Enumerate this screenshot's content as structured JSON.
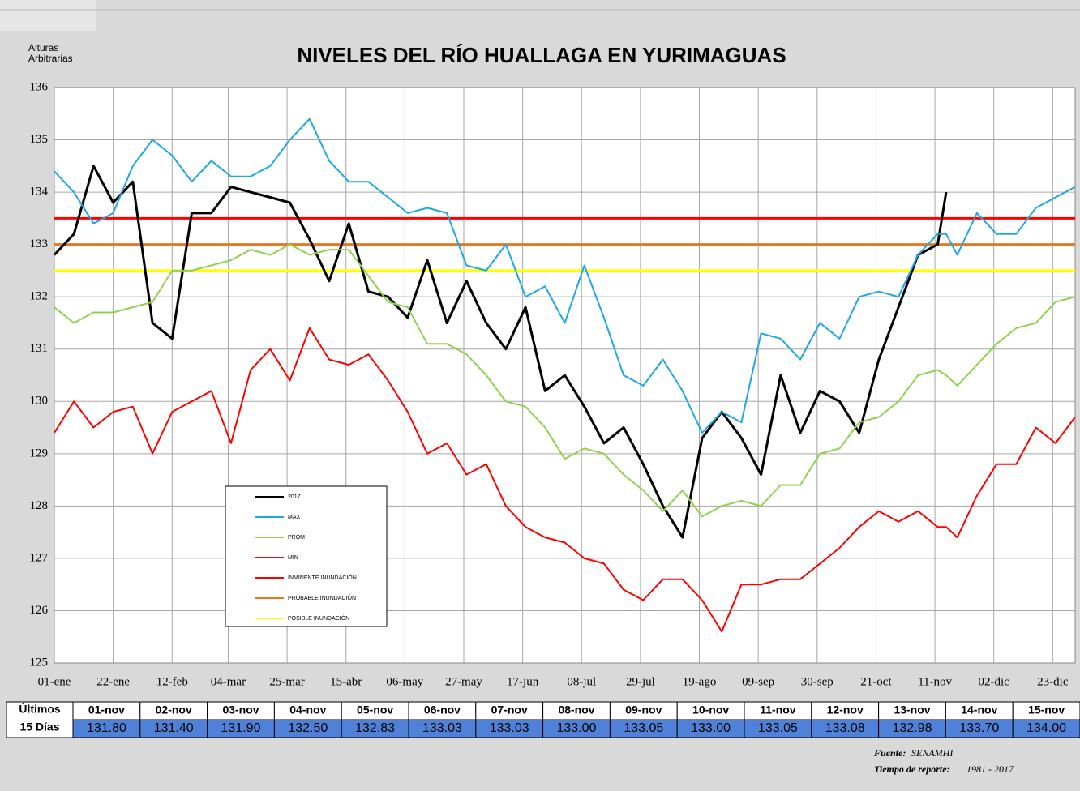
{
  "chart_data": {
    "type": "line",
    "title": "NIVELES DEL RÍO HUALLAGA EN YURIMAGUAS",
    "y_label": [
      "Alturas",
      "Arbitrarias"
    ],
    "xlim": [
      0,
      364
    ],
    "xticks": [
      {
        "value": 0,
        "label": "01-ene"
      },
      {
        "value": 21,
        "label": "22-ene"
      },
      {
        "value": 42,
        "label": "12-feb"
      },
      {
        "value": 62,
        "label": "04-mar"
      },
      {
        "value": 83,
        "label": "25-mar"
      },
      {
        "value": 104,
        "label": "15-abr"
      },
      {
        "value": 125,
        "label": "06-may"
      },
      {
        "value": 146,
        "label": "27-may"
      },
      {
        "value": 167,
        "label": "17-jun"
      },
      {
        "value": 188,
        "label": "08-jul"
      },
      {
        "value": 209,
        "label": "29-jul"
      },
      {
        "value": 230,
        "label": "19-ago"
      },
      {
        "value": 251,
        "label": "09-sep"
      },
      {
        "value": 272,
        "label": "30-sep"
      },
      {
        "value": 293,
        "label": "21-oct"
      },
      {
        "value": 314,
        "label": "11-nov"
      },
      {
        "value": 335,
        "label": "02-dic"
      },
      {
        "value": 356,
        "label": "23-dic"
      }
    ],
    "ylim": [
      125,
      136
    ],
    "yticks": [
      125,
      126,
      127,
      128,
      129,
      130,
      131,
      132,
      133,
      134,
      135,
      136
    ],
    "grid": true,
    "x": [
      0,
      7,
      14,
      21,
      28,
      35,
      42,
      49,
      56,
      63,
      70,
      77,
      84,
      91,
      98,
      105,
      112,
      119,
      126,
      133,
      140,
      147,
      154,
      161,
      168,
      175,
      182,
      189,
      196,
      203,
      210,
      217,
      224,
      231,
      238,
      245,
      252,
      259,
      266,
      273,
      280,
      287,
      294,
      301,
      308,
      315,
      318,
      322,
      329,
      336,
      343,
      350,
      357,
      364
    ],
    "series": [
      {
        "name": "2017",
        "color": "#000000",
        "width": 3,
        "values": [
          132.8,
          133.2,
          134.5,
          133.8,
          134.2,
          131.5,
          131.2,
          133.6,
          133.6,
          134.1,
          134.0,
          133.9,
          133.8,
          133.1,
          132.3,
          133.4,
          132.1,
          132.0,
          131.6,
          132.7,
          131.5,
          132.3,
          131.5,
          131.0,
          131.8,
          130.2,
          130.5,
          129.9,
          129.2,
          129.5,
          128.8,
          128.0,
          127.4,
          129.3,
          129.8,
          129.3,
          128.6,
          130.5,
          129.4,
          130.2,
          130.0,
          129.4,
          130.8,
          131.8,
          132.8,
          133.0,
          134.0,
          null,
          null,
          null,
          null,
          null,
          null,
          null
        ]
      },
      {
        "name": "MAX",
        "color": "#1ea7e1",
        "width": 2,
        "values": [
          134.4,
          134.0,
          133.4,
          133.6,
          134.5,
          135.0,
          134.7,
          134.2,
          134.6,
          134.3,
          134.3,
          134.5,
          135.0,
          135.4,
          134.6,
          134.2,
          134.2,
          133.9,
          133.6,
          133.7,
          133.6,
          132.6,
          132.5,
          133.0,
          132.0,
          132.2,
          131.5,
          132.6,
          131.6,
          130.5,
          130.3,
          130.8,
          130.2,
          129.4,
          129.8,
          129.6,
          131.3,
          131.2,
          130.8,
          131.5,
          131.2,
          132.0,
          132.1,
          132.0,
          132.8,
          133.2,
          133.2,
          132.8,
          133.6,
          133.2,
          133.2,
          133.7,
          133.9,
          134.1
        ]
      },
      {
        "name": "PROM",
        "color": "#92d050",
        "width": 2,
        "values": [
          131.8,
          131.5,
          131.7,
          131.7,
          131.8,
          131.9,
          132.5,
          132.5,
          132.6,
          132.7,
          132.9,
          132.8,
          133.0,
          132.8,
          132.9,
          132.9,
          132.4,
          131.9,
          131.8,
          131.1,
          131.1,
          130.9,
          130.5,
          130.0,
          129.9,
          129.5,
          128.9,
          129.1,
          129.0,
          128.6,
          128.3,
          127.9,
          128.3,
          127.8,
          128.0,
          128.1,
          128.0,
          128.4,
          128.4,
          129.0,
          129.1,
          129.6,
          129.7,
          130.0,
          130.5,
          130.6,
          130.5,
          130.3,
          130.7,
          131.1,
          131.4,
          131.5,
          131.9,
          132.0
        ]
      },
      {
        "name": "MIN",
        "color": "#ff0000",
        "width": 2,
        "values": [
          129.4,
          130.0,
          129.5,
          129.8,
          129.9,
          129.0,
          129.8,
          130.0,
          130.2,
          129.2,
          130.6,
          131.0,
          130.4,
          131.4,
          130.8,
          130.7,
          130.9,
          130.4,
          129.8,
          129.0,
          129.2,
          128.6,
          128.8,
          128.0,
          127.6,
          127.4,
          127.3,
          127.0,
          126.9,
          126.4,
          126.2,
          126.6,
          126.6,
          126.2,
          125.6,
          126.5,
          126.5,
          126.6,
          126.6,
          126.9,
          127.2,
          127.6,
          127.9,
          127.7,
          127.9,
          127.6,
          127.6,
          127.4,
          128.2,
          128.8,
          128.8,
          129.5,
          129.2,
          129.7
        ]
      }
    ],
    "reference_lines": [
      {
        "name": "INMINENTE INUNDACIÓN",
        "color": "#ff0000",
        "value": 133.5
      },
      {
        "name": "PROBABLE INUNDACIÓN",
        "color": "#e87722",
        "value": 133
      },
      {
        "name": "POSIBLE INUNDACIÓN",
        "color": "#ffff00",
        "value": 132.5
      }
    ]
  },
  "table": {
    "header": [
      "Últimos",
      "15 Días"
    ],
    "dates": [
      "01-nov",
      "02-nov",
      "03-nov",
      "04-nov",
      "05-nov",
      "06-nov",
      "07-nov",
      "08-nov",
      "09-nov",
      "10-nov",
      "11-nov",
      "12-nov",
      "13-nov",
      "14-nov",
      "15-nov"
    ],
    "values": [
      "131.80",
      "131.40",
      "131.90",
      "132.50",
      "132.83",
      "133.03",
      "133.03",
      "133.00",
      "133.05",
      "133.00",
      "133.05",
      "133.08",
      "132.98",
      "133.70",
      "134.00"
    ]
  },
  "footer": {
    "source_label": "Fuente:",
    "source": "SENAMHI",
    "period_label": "Tiempo de reporte:",
    "period": "1981  -  2017"
  }
}
